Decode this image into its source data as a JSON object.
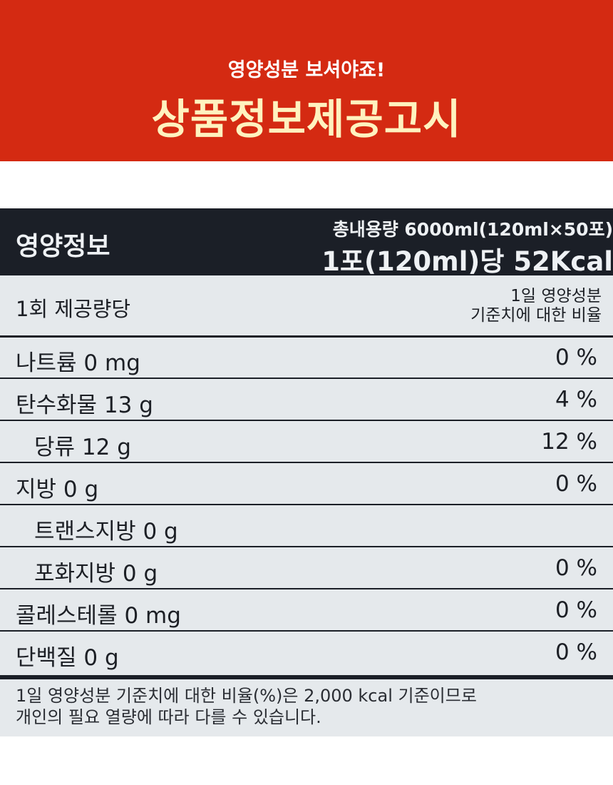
{
  "banner": {
    "subtitle": "영양성분 보셔야죠!",
    "title": "상품정보제공고시"
  },
  "label": {
    "title": "영양정보",
    "total": "총내용량 6000ml(120ml×50포)",
    "kcal": "1포(120ml)당 52Kcal",
    "serving": "1회 제공량당",
    "dv_header_line1": "1일 영양성분",
    "dv_header_line2": "기준치에 대한 비율",
    "rows": [
      {
        "name": "나트륨 0 mg",
        "pct": "0 %"
      },
      {
        "name": "탄수화물 13 g",
        "pct": "4 %"
      },
      {
        "name": "당류 12 g",
        "pct": "12 %"
      },
      {
        "name": "지방 0 g",
        "pct": "0 %"
      },
      {
        "name": "트랜스지방  0 g",
        "pct": ""
      },
      {
        "name": "포화지방 0 g",
        "pct": "0 %"
      },
      {
        "name": "콜레스테롤 0 mg",
        "pct": "0 %"
      },
      {
        "name": "단백질 0 g",
        "pct": "0 %"
      }
    ],
    "footnote_line1": "1일 영양성분 기준치에 대한 비율(%)은 2,000 kcal 기준이므로",
    "footnote_line2": "개인의 필요 열량에 따라 다를 수 있습니다."
  },
  "colors": {
    "banner": "#d42a12",
    "banner_title": "#fff2bf",
    "label_bg": "#e5e9ec",
    "label_dark": "#1b1f27"
  }
}
